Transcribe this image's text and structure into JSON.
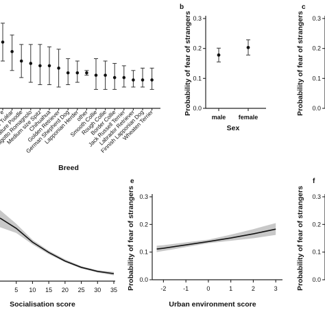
{
  "panels": {
    "b": "b",
    "c": "c",
    "e": "e",
    "f": "f"
  },
  "chart_data": [
    {
      "id": "a",
      "type": "scatter",
      "xlabel": "Breed",
      "ylabel": "",
      "categories": [
        "Lagotto Romagnolo (partial)",
        "Coton de Tuléar",
        "Miniature Poodle",
        "Lagotto Romagnolo",
        "Medium size Spitz",
        "Chihuahua",
        "Golden Retriever",
        "German Shepherd Dog",
        "Lapponian Herder",
        "other",
        "Smooth Collie",
        "Rough Collie",
        "Border Collie",
        "Jack Russell Terrier",
        "Labrador Retriever",
        "Finnish Lapponian Dog",
        "Wheaten Terrier"
      ],
      "tick_labels": [
        "e",
        "Coton de Tuléar",
        "Miniature Poodle",
        "Lagotto Romagnolo",
        "Medium size Spitz",
        "Chihuahua",
        "Golden Retriever",
        "German Shepherd Dog",
        "Lapponian Herder",
        "other",
        "Smooth Collie",
        "Rough Collie",
        "Border Collie",
        "Jack Russell Terrier",
        "Labrador Retriever",
        "Finnish Lapponian Dog",
        "Wheaten Terrier"
      ],
      "values": [
        0.28,
        0.24,
        0.2,
        0.19,
        0.18,
        0.18,
        0.17,
        0.15,
        0.15,
        0.15,
        0.14,
        0.14,
        0.13,
        0.13,
        0.12,
        0.12,
        0.12
      ],
      "lower": [
        0.2,
        0.16,
        0.13,
        0.11,
        0.1,
        0.1,
        0.09,
        0.1,
        0.11,
        0.14,
        0.08,
        0.08,
        0.08,
        0.09,
        0.09,
        0.09,
        0.08
      ],
      "upper": [
        0.36,
        0.31,
        0.27,
        0.27,
        0.27,
        0.26,
        0.25,
        0.21,
        0.2,
        0.16,
        0.21,
        0.2,
        0.19,
        0.18,
        0.16,
        0.17,
        0.17
      ],
      "ylim": [
        0,
        0.4
      ]
    },
    {
      "id": "b",
      "type": "scatter",
      "xlabel": "Sex",
      "ylabel": "Probability of fear of strangers",
      "categories": [
        "male",
        "female"
      ],
      "values": [
        0.178,
        0.203
      ],
      "lower": [
        0.155,
        0.178
      ],
      "upper": [
        0.201,
        0.229
      ],
      "yticks": [
        "0.0",
        "0.1",
        "0.2",
        "0.3"
      ],
      "ylim": [
        0,
        0.3
      ]
    },
    {
      "id": "c",
      "type": "scatter",
      "ylabel": "Probability of fear of strangers",
      "yticks": [
        "0.0",
        "0.1",
        "0.2",
        "0.3"
      ],
      "ylim": [
        0,
        0.3
      ]
    },
    {
      "id": "d",
      "type": "area",
      "xlabel": "Socialisation score",
      "ylabel": "",
      "x": [
        0,
        5,
        10,
        15,
        20,
        25,
        30,
        35
      ],
      "y": [
        0.55,
        0.46,
        0.34,
        0.25,
        0.175,
        0.12,
        0.085,
        0.065
      ],
      "lower": [
        0.47,
        0.42,
        0.32,
        0.235,
        0.165,
        0.11,
        0.075,
        0.05
      ],
      "upper": [
        0.62,
        0.5,
        0.36,
        0.265,
        0.19,
        0.13,
        0.095,
        0.08
      ],
      "xticks": [
        "5",
        "10",
        "15",
        "20",
        "25",
        "30",
        "35"
      ],
      "xlim": [
        0,
        35
      ],
      "ylim": [
        0,
        0.55
      ]
    },
    {
      "id": "e",
      "type": "area",
      "xlabel": "Urban environment score",
      "ylabel": "Probability of fear of strangers",
      "x": [
        -2.3,
        -2,
        -1,
        0,
        1,
        2,
        3
      ],
      "y": [
        0.111,
        0.114,
        0.126,
        0.138,
        0.151,
        0.166,
        0.183
      ],
      "lower": [
        0.1,
        0.104,
        0.118,
        0.132,
        0.141,
        0.15,
        0.162
      ],
      "upper": [
        0.123,
        0.125,
        0.135,
        0.145,
        0.163,
        0.183,
        0.205
      ],
      "xticks": [
        "-2",
        "-1",
        "0",
        "1",
        "2",
        "3"
      ],
      "yticks": [
        "0.0",
        "0.1",
        "0.2",
        "0.3"
      ],
      "xlim": [
        -2.5,
        3.3
      ],
      "ylim": [
        0,
        0.3
      ]
    },
    {
      "id": "f",
      "type": "scatter",
      "ylabel": "Probability of fear of strangers",
      "yticks": [
        "0.0",
        "0.1",
        "0.2",
        "0.3"
      ],
      "ylim": [
        0,
        0.3
      ]
    }
  ]
}
